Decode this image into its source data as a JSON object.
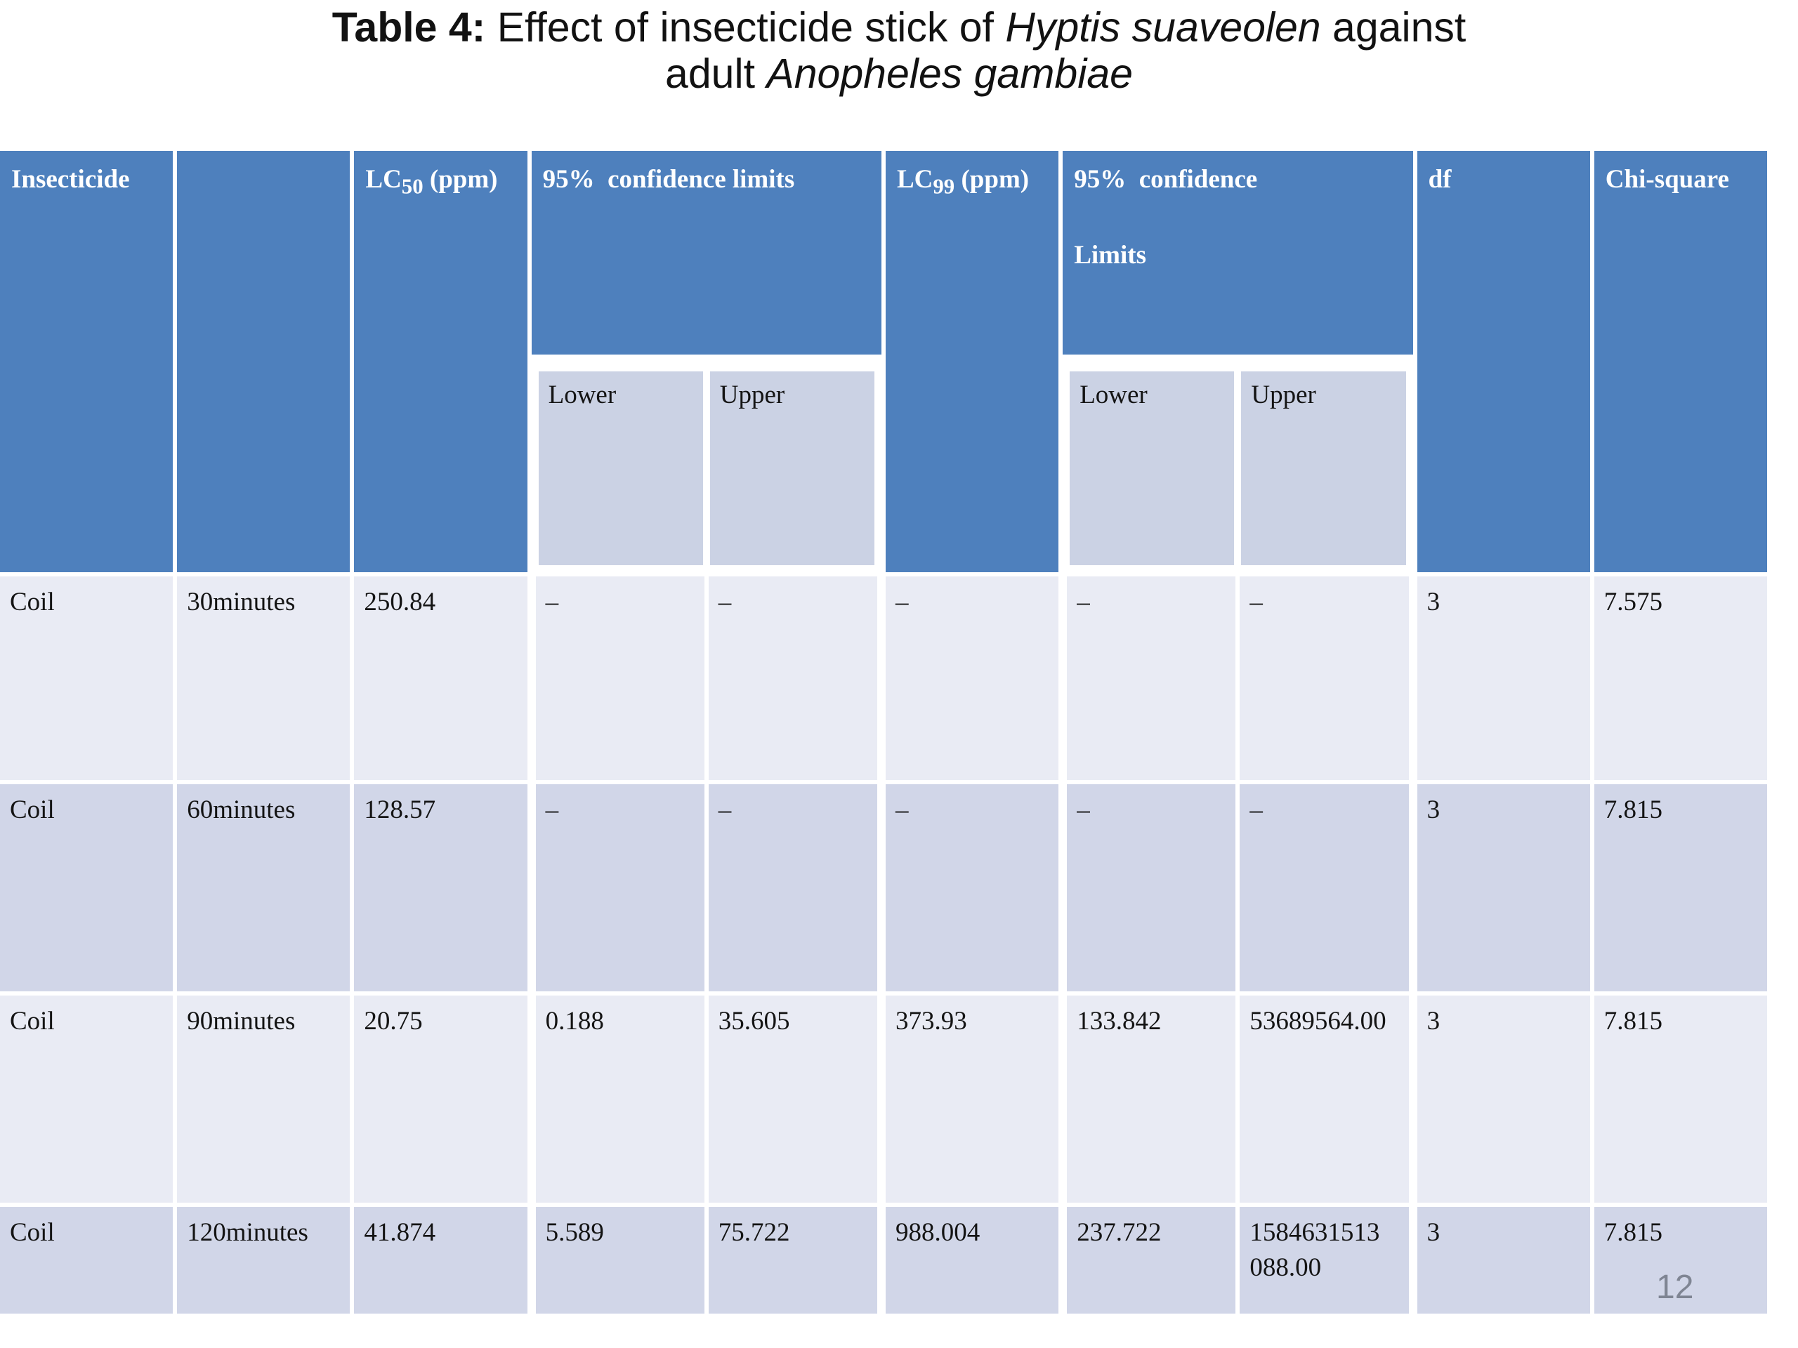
{
  "title": {
    "bold": "Table 4:",
    "segment1": " Effect of insecticide stick of ",
    "italic1": "Hyptis suaveolen",
    "segment2": " against",
    "line2_segment": "adult ",
    "line2_italic": "Anopheles gambiae"
  },
  "colors": {
    "header_blue": "#4E80BD",
    "subheader_bg": "#CBD2E4",
    "row_light": "#E9EBF4",
    "row_dark": "#D1D6E8",
    "grid_lines": "#FFFFFF",
    "header_text": "#FFFFFF",
    "body_text": "#141414",
    "page_number_gray": "#7F8593"
  },
  "table": {
    "headers": {
      "insecticide": "Insecticide",
      "time_blank": "",
      "lc50": {
        "base": "LC",
        "sub": "50",
        "rest": " (ppm)"
      },
      "ci95_1": "95%  confidence limits",
      "lc99": {
        "base": "LC",
        "sub": "99",
        "rest": " (ppm)"
      },
      "ci95_2_line1": "95%  confidence",
      "ci95_2_line2": "Limits",
      "df": "df",
      "chi_square": "Chi-square",
      "sub_lower_1": "Lower",
      "sub_upper_1": "Upper",
      "sub_lower_2": "Lower",
      "sub_upper_2": "Upper"
    },
    "rows": [
      [
        "Coil",
        "30minutes",
        "250.84",
        "–",
        "–",
        "–",
        "–",
        "–",
        "3",
        "7.575"
      ],
      [
        "Coil",
        "60minutes",
        "128.57",
        "–",
        "–",
        "–",
        "–",
        "–",
        "3",
        "7.815"
      ],
      [
        "Coil",
        "90minutes",
        "20.75",
        "0.188",
        "35.605",
        "373.93",
        "133.842",
        "53689564.00",
        "3",
        "7.815"
      ],
      [
        "Coil",
        "120minutes",
        "41.874",
        "5.589",
        "75.722",
        "988.004",
        "237.722",
        "1584631513 088.00",
        "3",
        "7.815"
      ]
    ]
  },
  "page_number": "12"
}
